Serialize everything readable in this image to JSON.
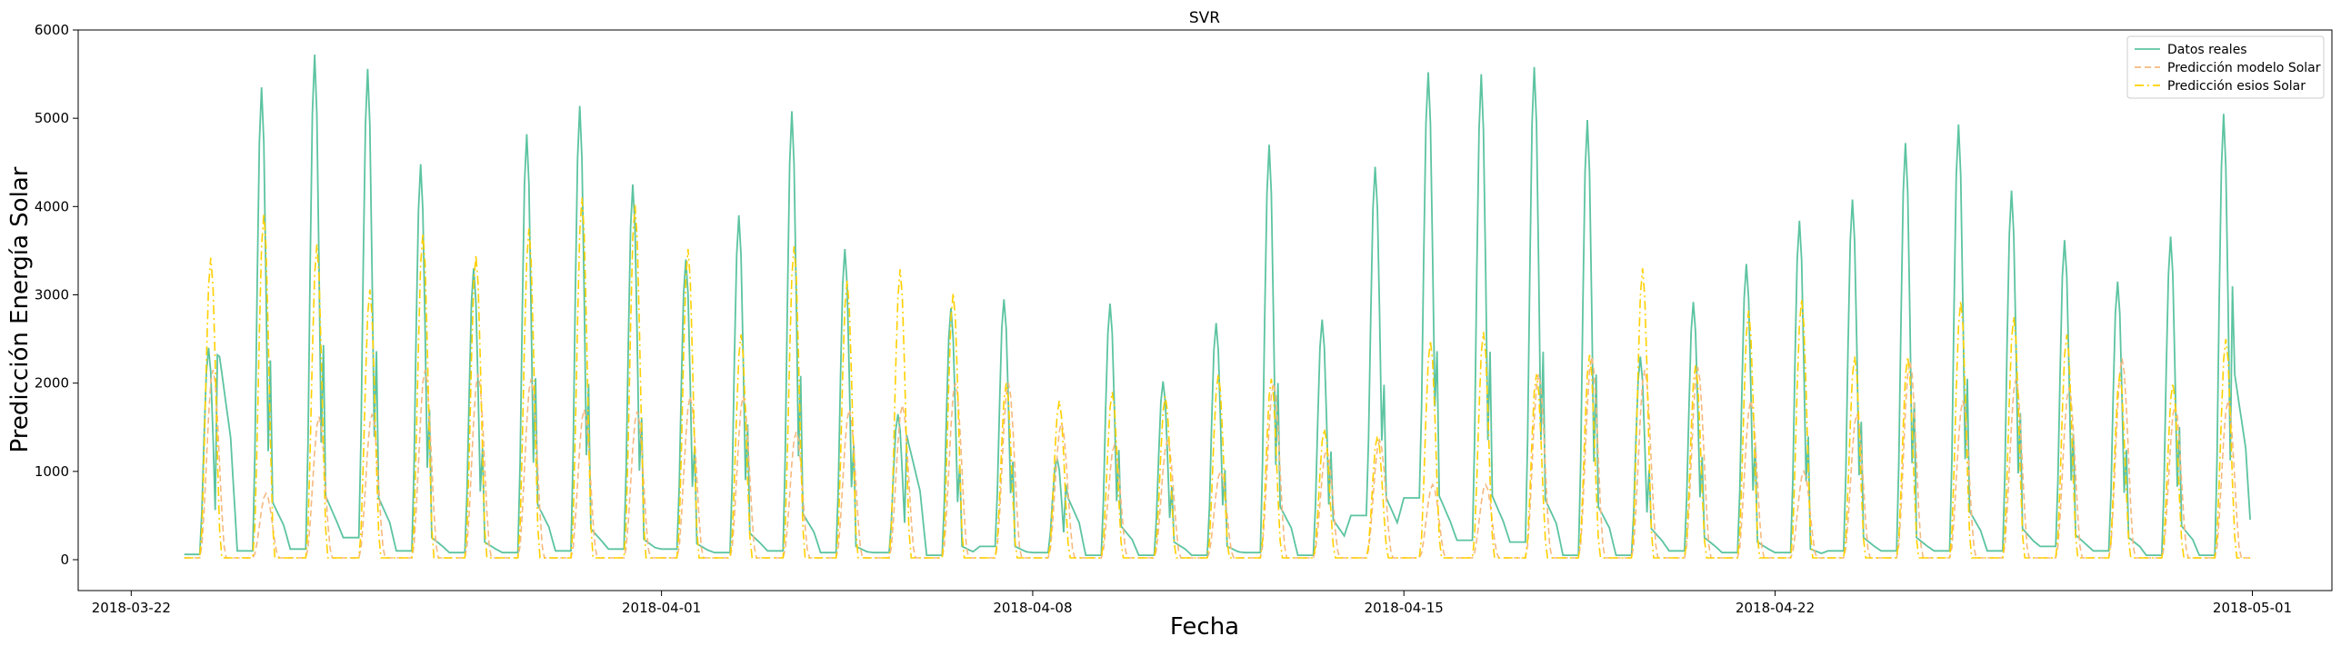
{
  "chart_data": {
    "type": "line",
    "title": "SVR",
    "xlabel": "Fecha",
    "ylabel": "Predicción Energía Solar",
    "xlim": [
      "2018-03-21T00:00",
      "2018-05-02T12:00"
    ],
    "ylim": [
      -350,
      6000
    ],
    "x_ticks": [
      "2018-03-22",
      "2018-04-01",
      "2018-04-08",
      "2018-04-15",
      "2018-04-22",
      "2018-05-01"
    ],
    "y_ticks": [
      0,
      1000,
      2000,
      3000,
      4000,
      5000,
      6000
    ],
    "grid": false,
    "legend_position": "top-right",
    "sampling": "hourly",
    "start": "2018-03-23T00:00",
    "end": "2018-04-30T23:00",
    "series": [
      {
        "name": "Datos reales",
        "color": "#5cc4a0",
        "style": "solid",
        "daily_peaks": [
          2400,
          5350,
          5720,
          5560,
          4480,
          3300,
          4820,
          5140,
          4250,
          3400,
          3900,
          5080,
          3520,
          1650,
          2850,
          2950,
          1150,
          2900,
          2020,
          2680,
          4700,
          2720,
          4450,
          5520,
          5500,
          5580,
          4980,
          2300,
          2920,
          3350,
          3840,
          4080,
          4720,
          4930,
          4180,
          3620,
          3150,
          3660,
          5050
        ],
        "daily_evening": [
          2300,
          650,
          720,
          700,
          250,
          200,
          620,
          350,
          230,
          180,
          300,
          520,
          150,
          1300,
          150,
          150,
          700,
          380,
          200,
          150,
          600,
          450,
          700,
          720,
          720,
          680,
          600,
          350,
          250,
          200,
          120,
          250,
          250,
          550,
          350,
          280,
          250,
          380,
          2100
        ],
        "night_floor": [
          60,
          100,
          120,
          250,
          100,
          80,
          80,
          100,
          120,
          120,
          80,
          100,
          80,
          80,
          50,
          150,
          80,
          50,
          50,
          50,
          80,
          50,
          500,
          700,
          220,
          200,
          50,
          50,
          100,
          80,
          80,
          100,
          100,
          100,
          100,
          150,
          100,
          50,
          50
        ]
      },
      {
        "name": "Predicción modelo Solar",
        "color": "#f5b97f",
        "style": "dashed",
        "daily_peaks": [
          2150,
          750,
          1620,
          1650,
          2150,
          2100,
          2050,
          1700,
          1680,
          1850,
          1850,
          1450,
          1700,
          1750,
          2000,
          2000,
          1550,
          1300,
          1350,
          1000,
          2000,
          1250,
          1350,
          850,
          850,
          2100,
          2300,
          2150,
          2180,
          1800,
          1000,
          1650,
          2250,
          1800,
          2050,
          1950,
          2280,
          1750,
          1800
        ]
      },
      {
        "name": "Predicción esios Solar",
        "color": "#ffd000",
        "style": "dashdot",
        "daily_peaks": [
          3420,
          3920,
          3570,
          3060,
          3700,
          3450,
          3750,
          4100,
          4020,
          3520,
          2550,
          3550,
          3160,
          3290,
          3020,
          2000,
          1800,
          1900,
          1850,
          2100,
          2050,
          1480,
          1400,
          2480,
          2580,
          2100,
          2320,
          3300,
          2200,
          2820,
          2950,
          2300,
          2300,
          2930,
          2750,
          2550,
          2100,
          2000,
          2500
        ]
      }
    ]
  }
}
